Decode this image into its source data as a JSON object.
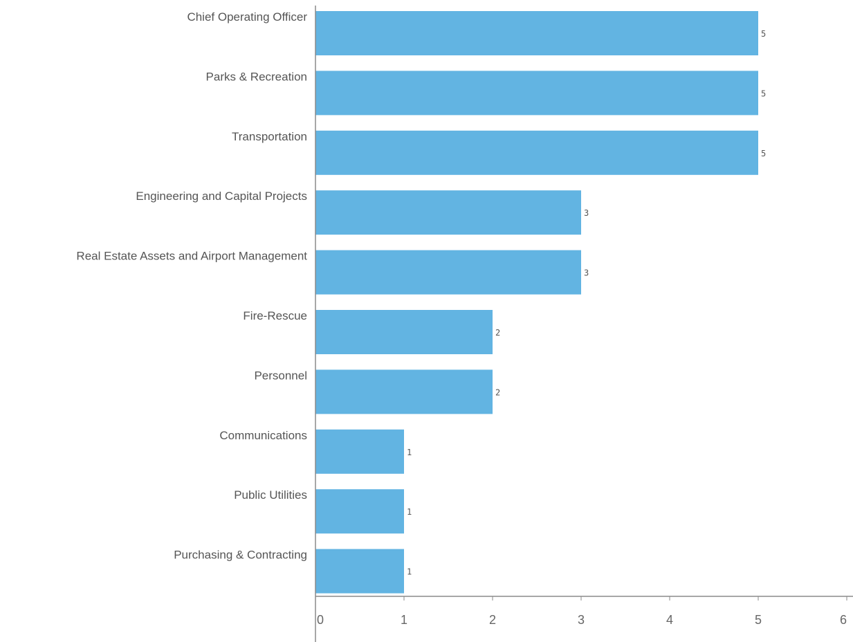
{
  "chart_data": {
    "type": "bar",
    "orientation": "horizontal",
    "categories": [
      "Chief Operating Officer",
      "Parks & Recreation",
      "Transportation",
      "Engineering and Capital Projects",
      "Real Estate Assets and Airport Management",
      "Fire-Rescue",
      "Personnel",
      "Communications",
      "Public Utilities",
      "Purchasing & Contracting"
    ],
    "values": [
      5,
      5,
      5,
      3,
      3,
      2,
      2,
      1,
      1,
      1
    ],
    "data_labels": [
      "5",
      "5",
      "5",
      "3",
      "3",
      "2",
      "2",
      "1",
      "1",
      "1"
    ],
    "xlim": [
      0,
      6
    ],
    "x_ticks": [
      "0",
      "1",
      "2",
      "3",
      "4",
      "5",
      "6"
    ],
    "grid": false,
    "legend": "none",
    "bar_color": "#62b4e2"
  }
}
